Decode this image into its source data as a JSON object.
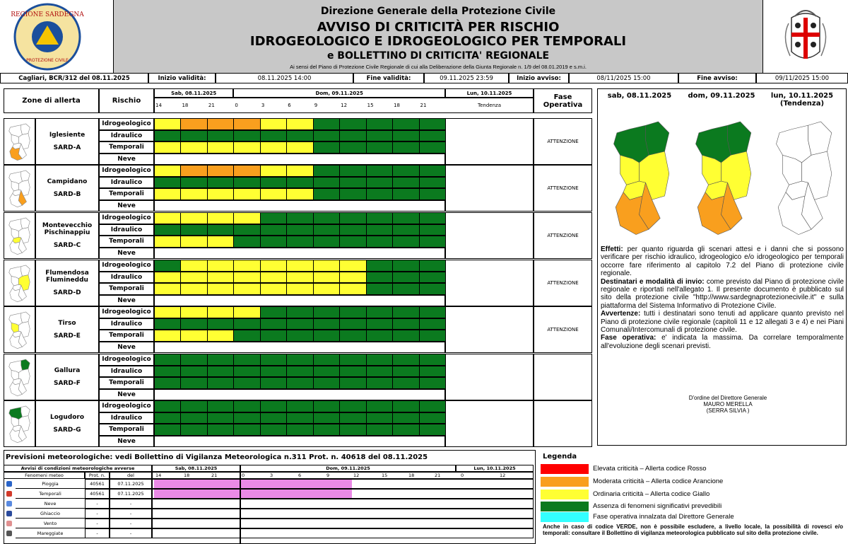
{
  "header": {
    "logo_top": "REGIONE SARDEGNA",
    "logo_bottom": "PROTEZIONE CIVILE",
    "org": "Direzione Generale della Protezione Civile",
    "title1": "AVVISO DI CRITICITÀ PER RISCHIO",
    "title2": "IDROGEOLOGICO E IDROGEOLOGICO PER TEMPORALI",
    "title3": "e BOLLETTINO DI CRITICITA' REGIONALE",
    "law": "Ai sensi del Piano di Protezione Civile Regionale di cui alla Deliberazione della Giunta Regionale n. 1/9 del 08.01.2019 e s.m.i."
  },
  "info": [
    "Cagliari, BCR/312 del 08.11.2025",
    "Inizio validità:",
    "08.11.2025 14:00",
    "Fine validità:",
    "09.11.2025 23:59",
    "Inizio avviso:",
    "08/11/2025 15:00",
    "Fine avviso:",
    "09/11/2025 15:00"
  ],
  "table": {
    "col_zone": "Zone di allerta",
    "col_risk": "Rischio",
    "col_fase": "Fase Operativa",
    "days": [
      "Sab, 08.11.2025",
      "Dom, 09.11.2025",
      "Lun, 10.11.2025"
    ],
    "times": [
      14,
      18,
      21,
      0,
      3,
      6,
      9,
      12,
      15,
      18,
      21
    ],
    "tendency": "Tendenza",
    "zones": [
      {
        "name": "Iglesiente",
        "code": "SARD-A",
        "map_color": "#f99f1e",
        "fase": "ATTENZIONE",
        "rows": [
          {
            "risk": "Idrogeologico",
            "cells": [
              "#ffff33",
              "#f99f1e",
              "#f99f1e",
              "#f99f1e",
              "#ffff33",
              "#ffff33",
              "#0b7a1f",
              "#0b7a1f",
              "#0b7a1f",
              "#0b7a1f",
              "#0b7a1f"
            ]
          },
          {
            "risk": "Idraulico",
            "cells": [
              "#0b7a1f",
              "#0b7a1f",
              "#0b7a1f",
              "#0b7a1f",
              "#0b7a1f",
              "#0b7a1f",
              "#0b7a1f",
              "#0b7a1f",
              "#0b7a1f",
              "#0b7a1f",
              "#0b7a1f"
            ]
          },
          {
            "risk": "Temporali",
            "cells": [
              "#ffff33",
              "#ffff33",
              "#ffff33",
              "#ffff33",
              "#ffff33",
              "#ffff33",
              "#0b7a1f",
              "#0b7a1f",
              "#0b7a1f",
              "#0b7a1f",
              "#0b7a1f"
            ]
          },
          {
            "risk": "Neve",
            "cells": []
          }
        ]
      },
      {
        "name": "Campidano",
        "code": "SARD-B",
        "map_color": "#f99f1e",
        "fase": "ATTENZIONE",
        "rows": [
          {
            "risk": "Idrogeologico",
            "cells": [
              "#ffff33",
              "#f99f1e",
              "#f99f1e",
              "#f99f1e",
              "#ffff33",
              "#ffff33",
              "#0b7a1f",
              "#0b7a1f",
              "#0b7a1f",
              "#0b7a1f",
              "#0b7a1f"
            ]
          },
          {
            "risk": "Idraulico",
            "cells": [
              "#0b7a1f",
              "#0b7a1f",
              "#0b7a1f",
              "#0b7a1f",
              "#0b7a1f",
              "#0b7a1f",
              "#0b7a1f",
              "#0b7a1f",
              "#0b7a1f",
              "#0b7a1f",
              "#0b7a1f"
            ]
          },
          {
            "risk": "Temporali",
            "cells": [
              "#ffff33",
              "#ffff33",
              "#ffff33",
              "#ffff33",
              "#ffff33",
              "#ffff33",
              "#0b7a1f",
              "#0b7a1f",
              "#0b7a1f",
              "#0b7a1f",
              "#0b7a1f"
            ]
          },
          {
            "risk": "Neve",
            "cells": []
          }
        ]
      },
      {
        "name": "Montevecchio Pischinappiu",
        "code": "SARD-C",
        "map_color": "#ffff33",
        "fase": "ATTENZIONE",
        "rows": [
          {
            "risk": "Idrogeologico",
            "cells": [
              "#ffff33",
              "#ffff33",
              "#ffff33",
              "#ffff33",
              "#0b7a1f",
              "#0b7a1f",
              "#0b7a1f",
              "#0b7a1f",
              "#0b7a1f",
              "#0b7a1f",
              "#0b7a1f"
            ]
          },
          {
            "risk": "Idraulico",
            "cells": [
              "#0b7a1f",
              "#0b7a1f",
              "#0b7a1f",
              "#0b7a1f",
              "#0b7a1f",
              "#0b7a1f",
              "#0b7a1f",
              "#0b7a1f",
              "#0b7a1f",
              "#0b7a1f",
              "#0b7a1f"
            ]
          },
          {
            "risk": "Temporali",
            "cells": [
              "#ffff33",
              "#ffff33",
              "#ffff33",
              "#0b7a1f",
              "#0b7a1f",
              "#0b7a1f",
              "#0b7a1f",
              "#0b7a1f",
              "#0b7a1f",
              "#0b7a1f",
              "#0b7a1f"
            ]
          },
          {
            "risk": "Neve",
            "cells": []
          }
        ]
      },
      {
        "name": "Flumendosa Flumineddu",
        "code": "SARD-D",
        "map_color": "#ffff33",
        "fase": "ATTENZIONE",
        "rows": [
          {
            "risk": "Idrogeologico",
            "cells": [
              "#0b7a1f",
              "#ffff33",
              "#ffff33",
              "#ffff33",
              "#ffff33",
              "#ffff33",
              "#ffff33",
              "#ffff33",
              "#0b7a1f",
              "#0b7a1f",
              "#0b7a1f"
            ]
          },
          {
            "risk": "Idraulico",
            "cells": [
              "#ffff33",
              "#ffff33",
              "#ffff33",
              "#ffff33",
              "#ffff33",
              "#ffff33",
              "#ffff33",
              "#ffff33",
              "#0b7a1f",
              "#0b7a1f",
              "#0b7a1f"
            ]
          },
          {
            "risk": "Temporali",
            "cells": [
              "#ffff33",
              "#ffff33",
              "#ffff33",
              "#ffff33",
              "#ffff33",
              "#ffff33",
              "#ffff33",
              "#ffff33",
              "#0b7a1f",
              "#0b7a1f",
              "#0b7a1f"
            ]
          },
          {
            "risk": "Neve",
            "cells": []
          }
        ]
      },
      {
        "name": "Tirso",
        "code": "SARD-E",
        "map_color": "#ffff33",
        "fase": "ATTENZIONE",
        "rows": [
          {
            "risk": "Idrogeologico",
            "cells": [
              "#ffff33",
              "#ffff33",
              "#ffff33",
              "#ffff33",
              "#0b7a1f",
              "#0b7a1f",
              "#0b7a1f",
              "#0b7a1f",
              "#0b7a1f",
              "#0b7a1f",
              "#0b7a1f"
            ]
          },
          {
            "risk": "Idraulico",
            "cells": [
              "#0b7a1f",
              "#0b7a1f",
              "#0b7a1f",
              "#0b7a1f",
              "#0b7a1f",
              "#0b7a1f",
              "#0b7a1f",
              "#0b7a1f",
              "#0b7a1f",
              "#0b7a1f",
              "#0b7a1f"
            ]
          },
          {
            "risk": "Temporali",
            "cells": [
              "#ffff33",
              "#ffff33",
              "#ffff33",
              "#0b7a1f",
              "#0b7a1f",
              "#0b7a1f",
              "#0b7a1f",
              "#0b7a1f",
              "#0b7a1f",
              "#0b7a1f",
              "#0b7a1f"
            ]
          },
          {
            "risk": "Neve",
            "cells": []
          }
        ]
      },
      {
        "name": "Gallura",
        "code": "SARD-F",
        "map_color": "#0b7a1f",
        "rows": [
          {
            "risk": "Idrogeologico",
            "cells": [
              "#0b7a1f",
              "#0b7a1f",
              "#0b7a1f",
              "#0b7a1f",
              "#0b7a1f",
              "#0b7a1f",
              "#0b7a1f",
              "#0b7a1f",
              "#0b7a1f",
              "#0b7a1f",
              "#0b7a1f"
            ]
          },
          {
            "risk": "Idraulico",
            "cells": [
              "#0b7a1f",
              "#0b7a1f",
              "#0b7a1f",
              "#0b7a1f",
              "#0b7a1f",
              "#0b7a1f",
              "#0b7a1f",
              "#0b7a1f",
              "#0b7a1f",
              "#0b7a1f",
              "#0b7a1f"
            ]
          },
          {
            "risk": "Temporali",
            "cells": [
              "#0b7a1f",
              "#0b7a1f",
              "#0b7a1f",
              "#0b7a1f",
              "#0b7a1f",
              "#0b7a1f",
              "#0b7a1f",
              "#0b7a1f",
              "#0b7a1f",
              "#0b7a1f",
              "#0b7a1f"
            ]
          },
          {
            "risk": "Neve",
            "cells": []
          }
        ]
      },
      {
        "name": "Logudoro",
        "code": "SARD-G",
        "map_color": "#0b7a1f",
        "rows": [
          {
            "risk": "Idrogeologico",
            "cells": [
              "#0b7a1f",
              "#0b7a1f",
              "#0b7a1f",
              "#0b7a1f",
              "#0b7a1f",
              "#0b7a1f",
              "#0b7a1f",
              "#0b7a1f",
              "#0b7a1f",
              "#0b7a1f",
              "#0b7a1f"
            ]
          },
          {
            "risk": "Idraulico",
            "cells": [
              "#0b7a1f",
              "#0b7a1f",
              "#0b7a1f",
              "#0b7a1f",
              "#0b7a1f",
              "#0b7a1f",
              "#0b7a1f",
              "#0b7a1f",
              "#0b7a1f",
              "#0b7a1f",
              "#0b7a1f"
            ]
          },
          {
            "risk": "Temporali",
            "cells": [
              "#0b7a1f",
              "#0b7a1f",
              "#0b7a1f",
              "#0b7a1f",
              "#0b7a1f",
              "#0b7a1f",
              "#0b7a1f",
              "#0b7a1f",
              "#0b7a1f",
              "#0b7a1f",
              "#0b7a1f"
            ]
          },
          {
            "risk": "Neve",
            "cells": []
          }
        ]
      }
    ]
  },
  "maps": [
    {
      "date": "sab, 08.11.2025",
      "colored": true
    },
    {
      "date": "dom, 09.11.2025",
      "colored": true
    },
    {
      "date": "lun, 10.11.2025",
      "note": "(Tendenza)",
      "colored": false
    }
  ],
  "notes": [
    {
      "label": "Effetti:",
      "text": "per quanto riguarda gli scenari attesi e i danni che si possono verificare per rischio idraulico, idrogeologico e/o idrogeologico per temporali occorre fare riferimento al capitolo 7.2 del Piano di protezione civile regionale."
    },
    {
      "label": "Destinatari e modalità di invio:",
      "text": "come previsto dal Piano di protezione civile regionale e riportati nell'allegato 1. Il presente documento è pubblicato sul sito della protezione civile \"http://www.sardegnaprotezionecivile.it\" e sulla piattaforma del Sistema Informativo di Protezione Civile."
    },
    {
      "label": "Avvertenze:",
      "text": "tutti i destinatari sono tenuti ad applicare quanto previsto nel Piano di protezione civile regionale (capitoli 11 e 12 allegati 3 e 4) e nei Piani Comunali/Intercomunali di protezione civile."
    },
    {
      "label": "Fase operativa:",
      "text": "e' indicata la massima. Da correlare temporalmente all'evoluzione degli scenari previsti."
    }
  ],
  "signature": [
    "D'ordine del Direttore Generale",
    "MAURO MERELLA",
    "(SERRA SILVIA )"
  ],
  "meteo": {
    "title": "Previsioni meteorologiche: vedi Bollettino di Vigilanza Meteorologica n.311 Prot. n. 40618 del 08.11.2025",
    "header": "Avvisi di condizioni meteorologiche avverse",
    "days": [
      "Sab, 08.11.2025",
      "Dom, 09.11.2025",
      "Lun, 10.11.2025"
    ],
    "columns": [
      "Fenomeni meteo",
      "Prot. n.",
      "del"
    ],
    "times": [
      14,
      18,
      21,
      0,
      3,
      6,
      9,
      12,
      15,
      18,
      21,
      0,
      12
    ],
    "rows": [
      {
        "name": "Pioggia",
        "prot": "40561",
        "date": "07.11.2025",
        "cells": [
          "#ea8ae6",
          "#ea8ae6",
          "#ea8ae6",
          "#ea8ae6",
          "#ea8ae6",
          "#ea8ae6",
          "#ea8ae6",
          null,
          null,
          null,
          null,
          null,
          null
        ]
      },
      {
        "name": "Temporali",
        "prot": "40561",
        "date": "07.11.2025",
        "cells": [
          "#ea8ae6",
          "#ea8ae6",
          "#ea8ae6",
          "#ea8ae6",
          "#ea8ae6",
          "#ea8ae6",
          "#ea8ae6",
          null,
          null,
          null,
          null,
          null,
          null
        ]
      },
      {
        "name": "Neve",
        "prot": "-",
        "date": "-",
        "cells": []
      },
      {
        "name": "Ghiaccio",
        "prot": "-",
        "date": "-",
        "cells": []
      },
      {
        "name": "Vento",
        "prot": "-",
        "date": "-",
        "cells": []
      },
      {
        "name": "Mareggiate",
        "prot": "-",
        "date": "-",
        "cells": []
      }
    ]
  },
  "legend": {
    "title": "Legenda",
    "items": [
      {
        "color": "#ff0000",
        "label": "Elevata criticità – Allerta codice Rosso"
      },
      {
        "color": "#f99f1e",
        "label": "Moderata criticità – Allerta codice Arancione"
      },
      {
        "color": "#ffff33",
        "label": "Ordinaria criticità – Allerta codice Giallo"
      },
      {
        "color": "#0b7a1f",
        "label": "Assenza di fenomeni significativi prevedibili"
      },
      {
        "color": "#33ffff",
        "label": "Fase operativa innalzata dal Direttore Generale"
      }
    ],
    "note": "Anche in caso di codice VERDE, non è possibile escludere, a livello locale, la possibilità di rovesci e/o temporali: consultare il Bollettino di vigilanza meteorologica pubblicato sul sito della protezione civile."
  }
}
